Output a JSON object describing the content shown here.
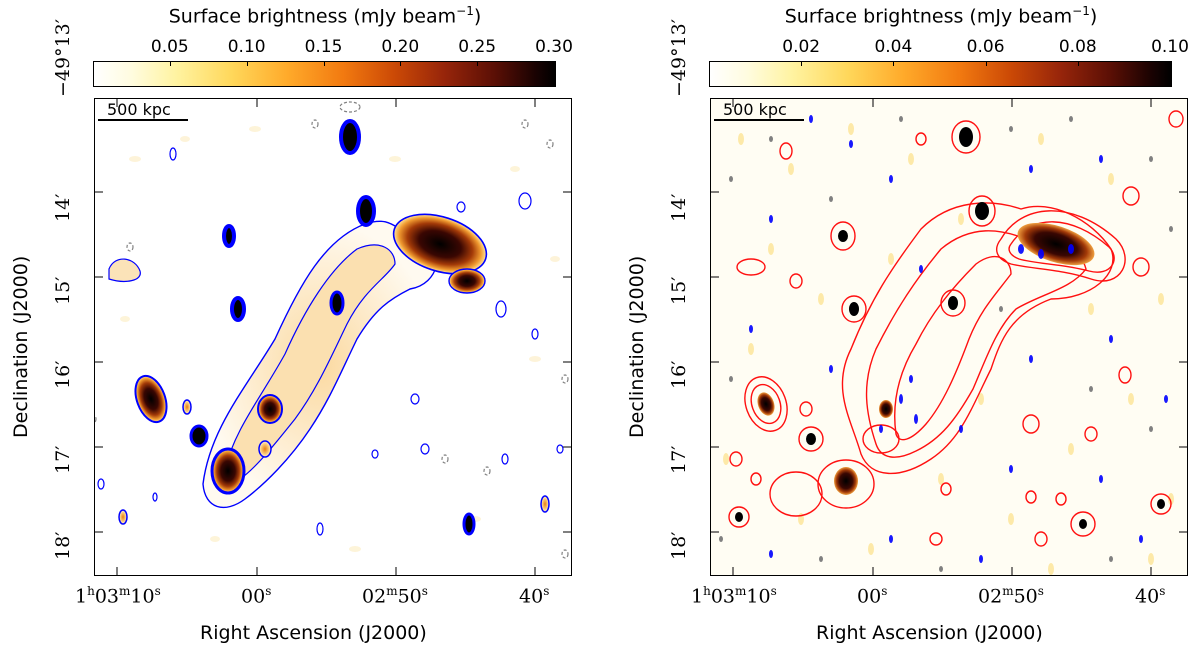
{
  "colorbar_title_prefix": "Surface brightness (mJy beam",
  "colorbar_title_exp": "−1",
  "colorbar_title_suffix": ")",
  "ra_axis_label": "Right Ascension (J2000)",
  "dec_axis_label": "Declination (J2000)",
  "ra_ticks": [
    {
      "h": "1",
      "m": "03",
      "s": "10",
      "hms": true
    },
    {
      "s": "00",
      "hms": false
    },
    {
      "m": "02",
      "s": "50",
      "hms": false,
      "with_m": true
    },
    {
      "s": "40",
      "hms": false
    }
  ],
  "dec_ticks": [
    "−49°13′",
    "14′",
    "15′",
    "16′",
    "17′",
    "18′"
  ],
  "scalebar_label": "500 kpc",
  "colors": {
    "low_contour": "#0000ff",
    "high_contour": "#ff1010",
    "negative_contour": "#808080"
  },
  "chart_data": [
    {
      "type": "heatmap",
      "panel": "left",
      "title": "Surface brightness (mJy beam−1)",
      "xlabel": "Right Ascension (J2000)",
      "ylabel": "Declination (J2000)",
      "colorbar_ticks": [
        "0.05",
        "0.10",
        "0.15",
        "0.20",
        "0.25",
        "0.30"
      ],
      "colorbar_range": [
        0.0,
        0.3
      ],
      "contours": [
        "blue"
      ]
    },
    {
      "type": "heatmap",
      "panel": "right",
      "title": "Surface brightness (mJy beam−1)",
      "xlabel": "Right Ascension (J2000)",
      "ylabel": "Declination (J2000)",
      "colorbar_ticks": [
        "0.02",
        "0.04",
        "0.06",
        "0.08",
        "0.10"
      ],
      "colorbar_range": [
        0.0,
        0.1
      ],
      "contours": [
        "blue",
        "red"
      ]
    }
  ]
}
